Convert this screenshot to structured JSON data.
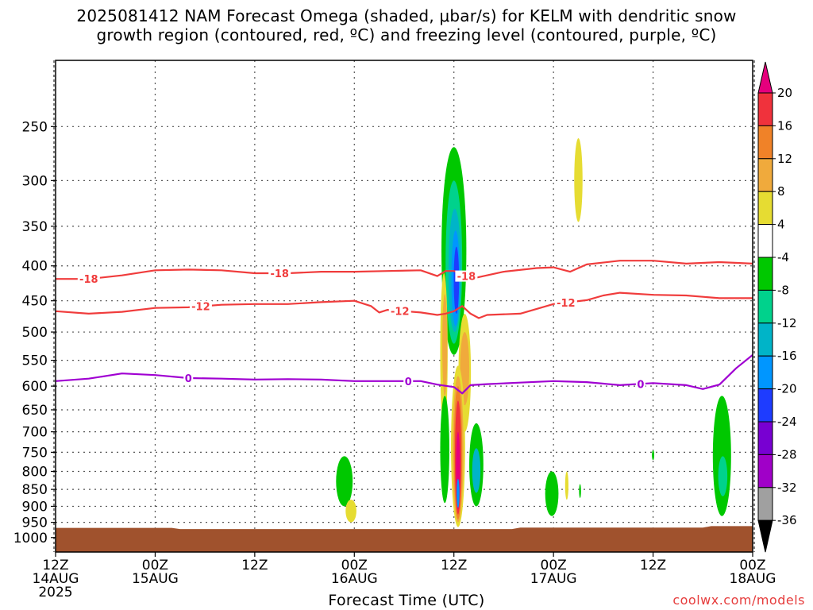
{
  "chart_data": {
    "type": "heatmap",
    "title_lines": [
      "2025081412 NAM Forecast Omega (shaded, μbar/s) for KELM with dendritic snow",
      "growth region (contoured, red, ºC) and freezing level (contoured, purple, ºC)"
    ],
    "xlabel": "Forecast Time (UTC)",
    "credit": "coolwx.com/models",
    "x_axis": {
      "unit": "forecast hour",
      "range": [
        0,
        84
      ],
      "ticks": [
        {
          "value": 0,
          "labels": [
            "12Z",
            "14AUG",
            "2025"
          ]
        },
        {
          "value": 12,
          "labels": [
            "00Z",
            "15AUG"
          ]
        },
        {
          "value": 24,
          "labels": [
            "12Z"
          ]
        },
        {
          "value": 36,
          "labels": [
            "00Z",
            "16AUG"
          ]
        },
        {
          "value": 48,
          "labels": [
            "12Z"
          ]
        },
        {
          "value": 60,
          "labels": [
            "00Z",
            "17AUG"
          ]
        },
        {
          "value": 72,
          "labels": [
            "12Z"
          ]
        },
        {
          "value": 84,
          "labels": [
            "00Z",
            "18AUG"
          ]
        }
      ]
    },
    "y_axis": {
      "unit": "hPa",
      "scale": "log",
      "inverted": true,
      "range": [
        1050,
        200
      ],
      "ticks": [
        250,
        300,
        350,
        400,
        450,
        500,
        550,
        600,
        650,
        700,
        750,
        800,
        850,
        900,
        950,
        1000
      ]
    },
    "grid": true,
    "colorbar": {
      "labels": [
        20,
        16,
        12,
        8,
        4,
        -4,
        -8,
        -12,
        -16,
        -20,
        -24,
        -28,
        -32,
        -36
      ],
      "bins": [
        {
          "range": [
            20,
            24
          ],
          "color": "#e6007d"
        },
        {
          "range": [
            16,
            20
          ],
          "color": "#f0323c"
        },
        {
          "range": [
            12,
            16
          ],
          "color": "#f08228"
        },
        {
          "range": [
            8,
            12
          ],
          "color": "#f0aa3c"
        },
        {
          "range": [
            4,
            8
          ],
          "color": "#e6dc32"
        },
        {
          "range": [
            -4,
            4
          ],
          "color": "#ffffff"
        },
        {
          "range": [
            -8,
            -4
          ],
          "color": "#00c800"
        },
        {
          "range": [
            -12,
            -8
          ],
          "color": "#00d28c"
        },
        {
          "range": [
            -16,
            -12
          ],
          "color": "#00b4c8"
        },
        {
          "range": [
            -20,
            -16
          ],
          "color": "#0096ff"
        },
        {
          "range": [
            -24,
            -20
          ],
          "color": "#1e3cff"
        },
        {
          "range": [
            -28,
            -24
          ],
          "color": "#7800d2"
        },
        {
          "range": [
            -32,
            -28
          ],
          "color": "#a000c8"
        },
        {
          "range": [
            -36,
            -32
          ],
          "color": "#a0a0a0"
        },
        {
          "range": [
            -40,
            -36
          ],
          "color": "#000000"
        }
      ]
    },
    "ground": {
      "color": "#a0522d",
      "pressure_hPa": [
        [
          0,
          968
        ],
        [
          14,
          968
        ],
        [
          15,
          972
        ],
        [
          55,
          972
        ],
        [
          56,
          967
        ],
        [
          78,
          967
        ],
        [
          79,
          962
        ],
        [
          84,
          962
        ]
      ]
    },
    "contours": [
      {
        "label": "-18",
        "color": "#f03c3c",
        "points": [
          [
            0,
            418
          ],
          [
            4,
            418
          ],
          [
            8,
            413
          ],
          [
            12,
            406
          ],
          [
            16,
            405
          ],
          [
            20,
            406
          ],
          [
            24,
            410
          ],
          [
            28,
            410
          ],
          [
            32,
            408
          ],
          [
            36,
            408
          ],
          [
            40,
            407
          ],
          [
            44,
            406
          ],
          [
            46,
            414
          ],
          [
            47,
            407
          ],
          [
            48,
            407
          ],
          [
            49,
            410
          ],
          [
            50,
            418
          ],
          [
            54,
            408
          ],
          [
            58,
            403
          ],
          [
            60,
            402
          ],
          [
            62,
            408
          ],
          [
            64,
            398
          ],
          [
            68,
            393
          ],
          [
            72,
            393
          ],
          [
            76,
            397
          ],
          [
            80,
            395
          ],
          [
            84,
            397
          ]
        ],
        "label_x": [
          4,
          27,
          49.5
        ]
      },
      {
        "label": "-12",
        "color": "#f03c3c",
        "points": [
          [
            0,
            466
          ],
          [
            4,
            470
          ],
          [
            8,
            467
          ],
          [
            12,
            461
          ],
          [
            16,
            460
          ],
          [
            20,
            456
          ],
          [
            24,
            455
          ],
          [
            28,
            455
          ],
          [
            32,
            452
          ],
          [
            36,
            450
          ],
          [
            38,
            458
          ],
          [
            39,
            468
          ],
          [
            40,
            464
          ],
          [
            44,
            468
          ],
          [
            46,
            472
          ],
          [
            47,
            470
          ],
          [
            48,
            466
          ],
          [
            49,
            458
          ],
          [
            50,
            470
          ],
          [
            51,
            477
          ],
          [
            52,
            472
          ],
          [
            56,
            470
          ],
          [
            60,
            455
          ],
          [
            64,
            449
          ],
          [
            66,
            442
          ],
          [
            68,
            438
          ],
          [
            72,
            441
          ],
          [
            76,
            442
          ],
          [
            78,
            444
          ],
          [
            80,
            446
          ],
          [
            84,
            446
          ]
        ],
        "label_x": [
          17.5,
          41.5,
          61.5
        ]
      },
      {
        "label": "0",
        "color": "#a000d2",
        "points": [
          [
            0,
            590
          ],
          [
            4,
            585
          ],
          [
            8,
            575
          ],
          [
            12,
            578
          ],
          [
            16,
            584
          ],
          [
            20,
            585
          ],
          [
            24,
            587
          ],
          [
            28,
            586
          ],
          [
            32,
            587
          ],
          [
            36,
            590
          ],
          [
            40,
            590
          ],
          [
            44,
            590
          ],
          [
            46,
            597
          ],
          [
            48,
            602
          ],
          [
            49,
            615
          ],
          [
            50,
            598
          ],
          [
            52,
            596
          ],
          [
            56,
            593
          ],
          [
            60,
            590
          ],
          [
            64,
            592
          ],
          [
            68,
            598
          ],
          [
            72,
            594
          ],
          [
            76,
            598
          ],
          [
            78,
            606
          ],
          [
            80,
            597
          ],
          [
            82,
            565
          ],
          [
            84,
            540
          ]
        ],
        "label_x": [
          16,
          42.5,
          70.5
        ]
      }
    ]
  }
}
